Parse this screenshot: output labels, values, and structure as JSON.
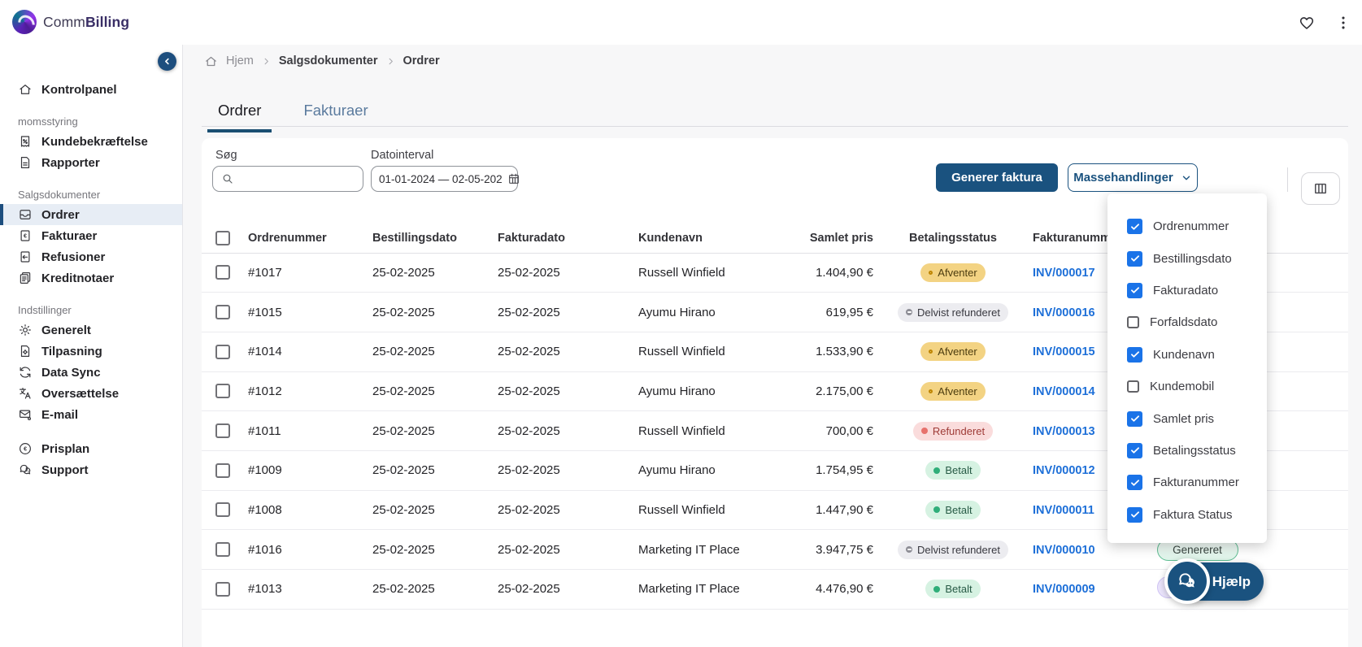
{
  "topbar": {
    "brand": {
      "part1": "Comm",
      "part2": "Billing"
    }
  },
  "sidebar": {
    "groups": [
      {
        "label": null,
        "items": [
          {
            "icon": "home-icon",
            "label": "Kontrolpanel",
            "active": false
          }
        ]
      },
      {
        "label": "momsstyring",
        "items": [
          {
            "icon": "receipt-percent-icon",
            "label": "Kundebekræftelse",
            "active": false
          },
          {
            "icon": "document-icon",
            "label": "Rapporter",
            "active": false
          }
        ]
      },
      {
        "label": "Salgsdokumenter",
        "items": [
          {
            "icon": "inbox-icon",
            "label": "Ordrer",
            "active": true
          },
          {
            "icon": "invoice-euro-icon",
            "label": "Fakturaer",
            "active": false
          },
          {
            "icon": "refund-icon",
            "label": "Refusioner",
            "active": false
          },
          {
            "icon": "credit-note-icon",
            "label": "Kreditnotaer",
            "active": false
          }
        ]
      },
      {
        "label": "Indstillinger",
        "items": [
          {
            "icon": "gear-icon",
            "label": "Generelt",
            "active": false
          },
          {
            "icon": "document-gear-icon",
            "label": "Tilpasning",
            "active": false
          },
          {
            "icon": "sync-icon",
            "label": "Data Sync",
            "active": false
          },
          {
            "icon": "translate-icon",
            "label": "Oversættelse",
            "active": false
          },
          {
            "icon": "mail-gear-icon",
            "label": "E-mail",
            "active": false
          }
        ]
      },
      {
        "label": null,
        "gap": true,
        "items": [
          {
            "icon": "euro-circle-icon",
            "label": "Prisplan",
            "active": false
          },
          {
            "icon": "headset-icon",
            "label": "Support",
            "active": false
          }
        ]
      }
    ]
  },
  "breadcrumb": {
    "items": [
      "Hjem",
      "Salgsdokumenter",
      "Ordrer"
    ]
  },
  "tabs": [
    {
      "label": "Ordrer",
      "active": true
    },
    {
      "label": "Fakturaer",
      "active": false
    }
  ],
  "filters": {
    "search_label": "Søg",
    "date_label": "Datointerval",
    "date_value": "01-01-2024 — 02-05-202"
  },
  "actions": {
    "generate_invoice": "Generer faktura",
    "bulk_actions": "Massehandlinger"
  },
  "table": {
    "headers": [
      "Ordrenummer",
      "Bestillingsdato",
      "Fakturadato",
      "Kundenavn",
      "Samlet pris",
      "Betalingsstatus",
      "Fakturanummer",
      ""
    ],
    "rows": [
      {
        "order": "#1017",
        "order_date": "25-02-2025",
        "invoice_date": "25-02-2025",
        "customer": "Russell Winfield",
        "total": "1.404,90 €",
        "payment_status": {
          "label": "Afventer",
          "variant": "amber"
        },
        "invoice": "INV/000017",
        "invoice_status": null
      },
      {
        "order": "#1015",
        "order_date": "25-02-2025",
        "invoice_date": "25-02-2025",
        "customer": "Ayumu Hirano",
        "total": "619,95 €",
        "payment_status": {
          "label": "Delvist refunderet",
          "variant": "gray"
        },
        "invoice": "INV/000016",
        "invoice_status": null
      },
      {
        "order": "#1014",
        "order_date": "25-02-2025",
        "invoice_date": "25-02-2025",
        "customer": "Russell Winfield",
        "total": "1.533,90 €",
        "payment_status": {
          "label": "Afventer",
          "variant": "amber"
        },
        "invoice": "INV/000015",
        "invoice_status": null
      },
      {
        "order": "#1012",
        "order_date": "25-02-2025",
        "invoice_date": "25-02-2025",
        "customer": "Ayumu Hirano",
        "total": "2.175,00 €",
        "payment_status": {
          "label": "Afventer",
          "variant": "amber"
        },
        "invoice": "INV/000014",
        "invoice_status": null
      },
      {
        "order": "#1011",
        "order_date": "25-02-2025",
        "invoice_date": "25-02-2025",
        "customer": "Russell Winfield",
        "total": "700,00 €",
        "payment_status": {
          "label": "Refunderet",
          "variant": "red"
        },
        "invoice": "INV/000013",
        "invoice_status": null
      },
      {
        "order": "#1009",
        "order_date": "25-02-2025",
        "invoice_date": "25-02-2025",
        "customer": "Ayumu Hirano",
        "total": "1.754,95 €",
        "payment_status": {
          "label": "Betalt",
          "variant": "green"
        },
        "invoice": "INV/000012",
        "invoice_status": null
      },
      {
        "order": "#1008",
        "order_date": "25-02-2025",
        "invoice_date": "25-02-2025",
        "customer": "Russell Winfield",
        "total": "1.447,90 €",
        "payment_status": {
          "label": "Betalt",
          "variant": "green"
        },
        "invoice": "INV/000011",
        "invoice_status": null
      },
      {
        "order": "#1016",
        "order_date": "25-02-2025",
        "invoice_date": "25-02-2025",
        "customer": "Marketing IT Place",
        "total": "3.947,75 €",
        "payment_status": {
          "label": "Delvist refunderet",
          "variant": "gray"
        },
        "invoice": "INV/000010",
        "invoice_status": {
          "label": "Genereret",
          "variant": "green-outline"
        }
      },
      {
        "order": "#1013",
        "order_date": "25-02-2025",
        "invoice_date": "25-02-2025",
        "customer": "Marketing IT Place",
        "total": "4.476,90 €",
        "payment_status": {
          "label": "Betalt",
          "variant": "green"
        },
        "invoice": "INV/000009",
        "invoice_status": {
          "label": "",
          "variant": "lavender"
        }
      }
    ]
  },
  "column_menu": {
    "items": [
      {
        "label": "Ordrenummer",
        "checked": true
      },
      {
        "label": "Bestillingsdato",
        "checked": true
      },
      {
        "label": "Fakturadato",
        "checked": true
      },
      {
        "label": "Forfaldsdato",
        "checked": false
      },
      {
        "label": "Kundenavn",
        "checked": true
      },
      {
        "label": "Kundemobil",
        "checked": false
      },
      {
        "label": "Samlet pris",
        "checked": true
      },
      {
        "label": "Betalingsstatus",
        "checked": true
      },
      {
        "label": "Fakturanummer",
        "checked": true
      },
      {
        "label": "Faktura Status",
        "checked": true
      }
    ]
  },
  "help": {
    "label": "Hjælp"
  },
  "colors": {
    "primary_blue": "#1a527f",
    "link_blue": "#1d6fd8",
    "checkbox_blue": "#1a73e8",
    "status_amber_bg": "#f3d383",
    "status_gray_bg": "#ececf0",
    "status_red_bg": "#fadcdc",
    "status_green_bg": "#d6f2e2"
  }
}
